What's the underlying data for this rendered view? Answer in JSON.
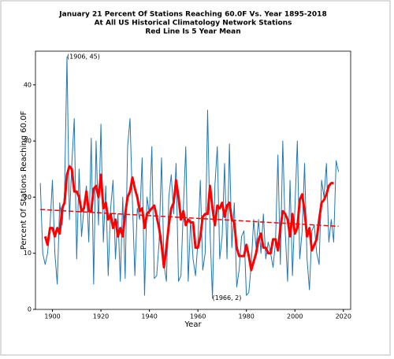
{
  "chart_data": {
    "type": "line",
    "title": [
      "January 21 Percent Of Stations Reaching 60.0F Vs. Year 1895-2018",
      "At All US Historical Climatology Network Stations",
      "Red Line Is 5 Year Mean"
    ],
    "xlabel": "Year",
    "ylabel": "Percent Of Stations Reaching 60.0F",
    "xlim": [
      1893,
      2023
    ],
    "ylim": [
      0,
      46
    ],
    "xticks": [
      1900,
      1920,
      1940,
      1960,
      1980,
      2000,
      2020
    ],
    "yticks": [
      0,
      10,
      20,
      30,
      40
    ],
    "x": [
      1895,
      1896,
      1897,
      1898,
      1899,
      1900,
      1901,
      1902,
      1903,
      1904,
      1905,
      1906,
      1907,
      1908,
      1909,
      1910,
      1911,
      1912,
      1913,
      1914,
      1915,
      1916,
      1917,
      1918,
      1919,
      1920,
      1921,
      1922,
      1923,
      1924,
      1925,
      1926,
      1927,
      1928,
      1929,
      1930,
      1931,
      1932,
      1933,
      1934,
      1935,
      1936,
      1937,
      1938,
      1939,
      1940,
      1941,
      1942,
      1943,
      1944,
      1945,
      1946,
      1947,
      1948,
      1949,
      1950,
      1951,
      1952,
      1953,
      1954,
      1955,
      1956,
      1957,
      1958,
      1959,
      1960,
      1961,
      1962,
      1963,
      1964,
      1965,
      1966,
      1967,
      1968,
      1969,
      1970,
      1971,
      1972,
      1973,
      1974,
      1975,
      1976,
      1977,
      1978,
      1979,
      1980,
      1981,
      1982,
      1983,
      1984,
      1985,
      1986,
      1987,
      1988,
      1989,
      1990,
      1991,
      1992,
      1993,
      1994,
      1995,
      1996,
      1997,
      1998,
      1999,
      2000,
      2001,
      2002,
      2003,
      2004,
      2005,
      2006,
      2007,
      2008,
      2009,
      2010,
      2011,
      2012,
      2013,
      2014,
      2015,
      2016,
      2017,
      2018
    ],
    "series": [
      {
        "color": "#1f77b4",
        "width": 1,
        "values": [
          22.5,
          10,
          8,
          10,
          15,
          23,
          10,
          4.5,
          19,
          15,
          21,
          45,
          16,
          26,
          34,
          9,
          25,
          13,
          18,
          22,
          12,
          30.5,
          4.5,
          30,
          15,
          33,
          12,
          22,
          6,
          18,
          23,
          9,
          17,
          5,
          20,
          5.5,
          29,
          34,
          19,
          6,
          18,
          16,
          27,
          2.5,
          20,
          17,
          29,
          5.5,
          6,
          12,
          27,
          8,
          5,
          20,
          24,
          17,
          26,
          5,
          6,
          18,
          29,
          5,
          16,
          9,
          6,
          12,
          23,
          7,
          10,
          35.5,
          14,
          2,
          22,
          29,
          9,
          13,
          26,
          9,
          29.5,
          11,
          19,
          4,
          7,
          13,
          14,
          2.5,
          3,
          8,
          16,
          11,
          16,
          10,
          17,
          9,
          12,
          10,
          7.5,
          12,
          27.5,
          8,
          30,
          14,
          5,
          23,
          6,
          18,
          30,
          9,
          14,
          26,
          9,
          3.5,
          14,
          15,
          10,
          8,
          23,
          20,
          26,
          12,
          16,
          12,
          26.5,
          24.5
        ]
      },
      {
        "color": "#ff0000",
        "width": 3,
        "values": [
          null,
          null,
          13,
          11.5,
          14.5,
          14.5,
          13,
          14.5,
          13.5,
          18,
          19,
          24,
          25.5,
          25,
          21,
          21,
          20,
          17.5,
          18,
          21,
          17.5,
          17.5,
          21.5,
          22,
          20,
          24,
          18,
          19,
          16,
          17,
          14.5,
          16,
          13,
          14.5,
          13,
          17,
          20,
          21,
          23.5,
          21.5,
          20,
          17.5,
          18,
          14.5,
          17,
          17.5,
          18,
          18.5,
          16.5,
          14.5,
          11.5,
          7.5,
          11,
          15,
          18,
          19,
          23,
          20,
          16,
          17.5,
          15,
          16,
          15.5,
          15.5,
          11,
          11,
          13,
          16.5,
          17,
          17,
          22,
          18,
          15,
          18.5,
          18,
          19,
          16.5,
          18.5,
          19,
          16,
          15.5,
          11,
          9.5,
          9.5,
          9.5,
          11.5,
          9.5,
          7,
          8.5,
          10,
          12.5,
          13.5,
          11,
          11,
          10,
          10,
          12.5,
          12.5,
          10.5,
          14.5,
          17.5,
          17,
          16,
          13,
          17,
          13.5,
          14.5,
          19.5,
          20.5,
          17.5,
          13,
          14.5,
          10.5,
          11.5,
          12.5,
          16,
          19,
          19.5,
          20.5,
          22,
          22.5,
          22.5,
          null,
          null
        ]
      },
      {
        "color": "#ff0000",
        "width": 1.5,
        "linestyle": "dashed",
        "x": [
          1895,
          2018
        ],
        "values": [
          17.8,
          14.8
        ]
      }
    ],
    "annotations": [
      {
        "text": "(1906, 45)",
        "x": 1906,
        "y": 45
      },
      {
        "text": "(1966, 2)",
        "x": 1966,
        "y": 2
      }
    ]
  }
}
